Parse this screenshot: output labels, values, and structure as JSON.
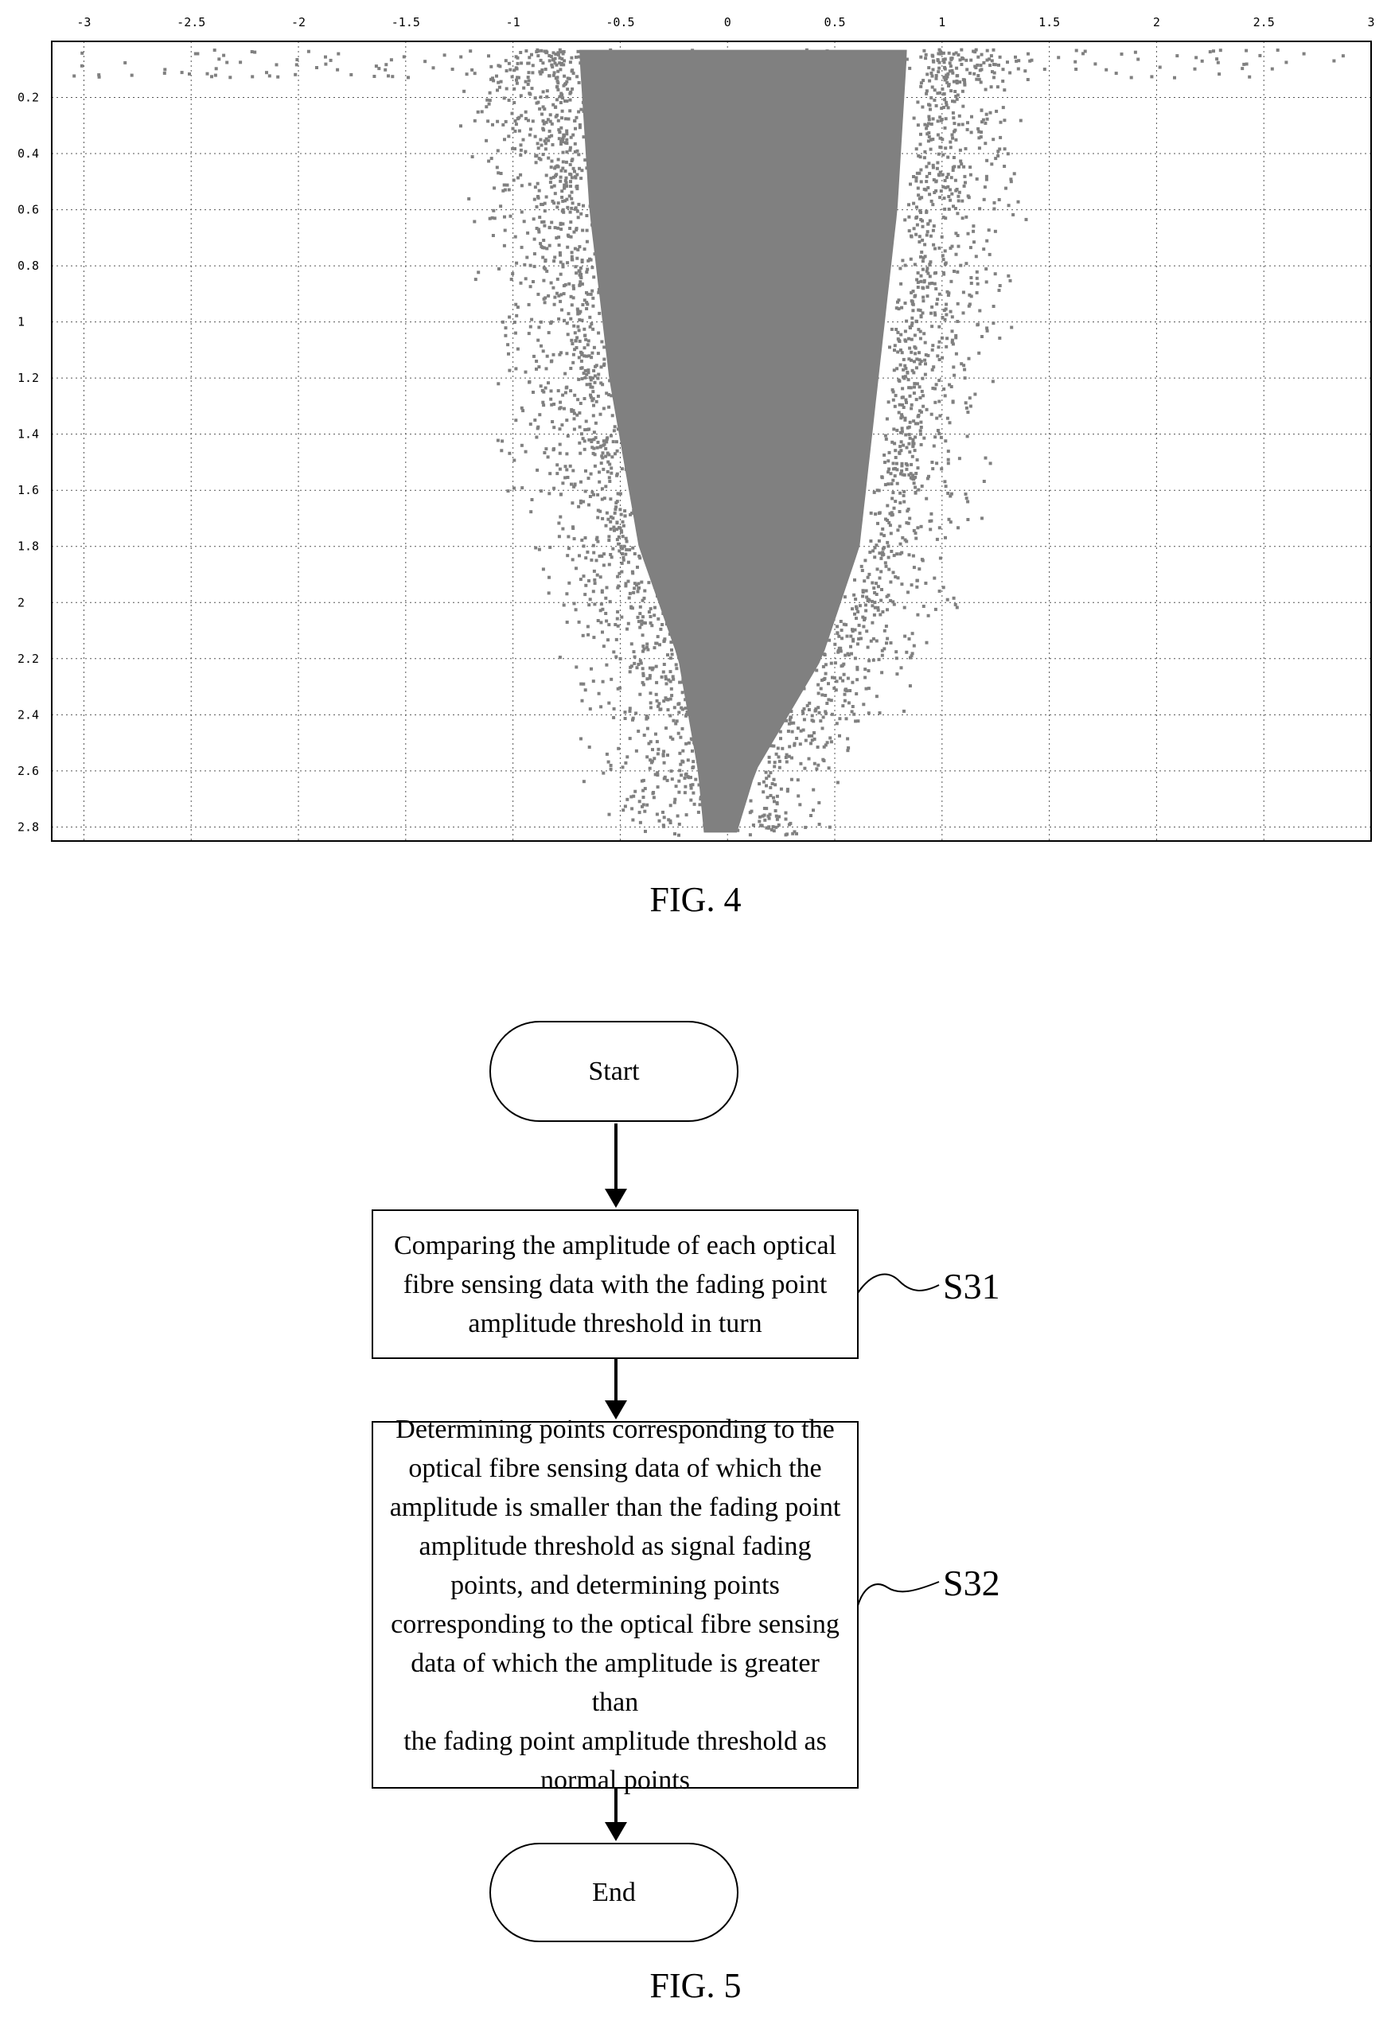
{
  "figure4": {
    "caption": "FIG. 4",
    "chart_data": {
      "type": "scatter",
      "title": "",
      "xlabel": "",
      "ylabel": "",
      "xlim": [
        -3.15,
        3.0
      ],
      "ylim": [
        0.0,
        2.85
      ],
      "y_inverted": true,
      "x_axis_position": "top",
      "x_ticks": [
        "-3",
        "-2.5",
        "-2",
        "-1.5",
        "-1",
        "-0.5",
        "0",
        "0.5",
        "1",
        "1.5",
        "2",
        "2.5",
        "3"
      ],
      "y_ticks": [
        "0.2",
        "0.4",
        "0.6",
        "0.8",
        "1",
        "1.2",
        "1.4",
        "1.6",
        "1.8",
        "2",
        "2.2",
        "2.4",
        "2.6",
        "2.8"
      ],
      "grid": true,
      "grid_style": "dotted",
      "marker_color": "#808080",
      "distribution": {
        "description_of_shape": "dense inverted-triangle cloud",
        "core_width_profile": [
          {
            "y": 0.05,
            "x_min": -0.75,
            "x_max": 0.95
          },
          {
            "y": 0.6,
            "x_min": -0.7,
            "x_max": 0.9
          },
          {
            "y": 1.2,
            "x_min": -0.6,
            "x_max": 0.8
          },
          {
            "y": 1.8,
            "x_min": -0.45,
            "x_max": 0.7
          },
          {
            "y": 2.2,
            "x_min": -0.25,
            "x_max": 0.5
          },
          {
            "y": 2.6,
            "x_min": -0.15,
            "x_max": 0.15
          },
          {
            "y": 2.82,
            "x_min": -0.12,
            "x_max": 0.05
          }
        ],
        "sparse_tail_top_row_x_range": [
          -3.1,
          2.95
        ]
      }
    }
  },
  "figure5": {
    "caption": "FIG. 5",
    "start": "Start",
    "end": "End",
    "steps": [
      {
        "label": "S31",
        "lines": [
          "Comparing the amplitude of each optical",
          "fibre sensing data with the fading point",
          "amplitude threshold in turn"
        ]
      },
      {
        "label": "S32",
        "lines": [
          "Determining points corresponding to the",
          "optical fibre sensing data of which the",
          "amplitude is smaller than the fading point",
          "amplitude threshold as signal fading",
          "points, and determining points",
          "corresponding to the optical fibre sensing",
          "data of which the amplitude is greater than",
          "the fading point amplitude threshold as",
          "normal points"
        ]
      }
    ]
  }
}
